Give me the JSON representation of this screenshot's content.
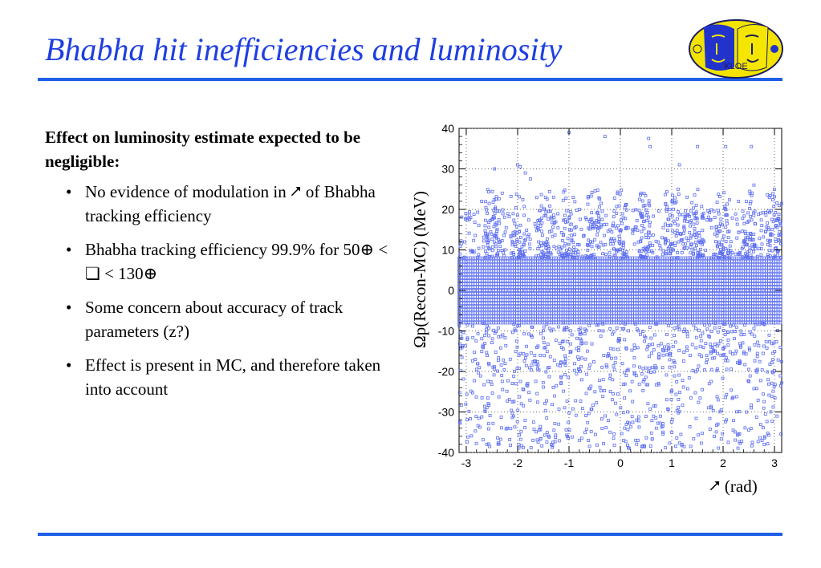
{
  "slide": {
    "title": "Bhabha hit inefficiencies and luminosity",
    "logo_text": "KLOE"
  },
  "body": {
    "lead": "Effect on luminosity estimate expected to be negligible:",
    "bullets": [
      "No evidence of modulation in ⭧ of Bhabha tracking efficiency",
      "Bhabha tracking efficiency 99.9% for 50⊕ < ❏ < 130⊕",
      "Some concern about accuracy of track parameters (z?)",
      "Effect is present in MC, and therefore taken into account"
    ]
  },
  "colors": {
    "title": "#1f3fe0",
    "rule": "#1f5fe8",
    "markers": "#5a6cf0"
  },
  "chart_data": {
    "type": "scatter",
    "xlabel": "⭧ (rad)",
    "ylabel": "Ωp(Recon-MC) (MeV)",
    "xlim": [
      -3.14,
      3.14
    ],
    "ylim": [
      -40,
      40
    ],
    "x_ticks": [
      "-3",
      "-2",
      "-1",
      "0",
      "1",
      "2",
      "3"
    ],
    "y_ticks": [
      "40",
      "30",
      "20",
      "10",
      "0",
      "-10",
      "-20",
      "-30",
      "-40"
    ],
    "grid": true,
    "marker": "open-square",
    "spike_x": [
      -2.5,
      -2.0,
      -1.5,
      -1.0,
      -0.5,
      0.0,
      0.5,
      1.0,
      1.5,
      2.0,
      2.5,
      3.0
    ],
    "band": {
      "y_min": -8,
      "y_max": 8
    },
    "tail_points": [
      [
        -2.45,
        30
      ],
      [
        -2.0,
        31
      ],
      [
        -1.95,
        30.5
      ],
      [
        -1.0,
        39
      ],
      [
        -0.3,
        38
      ],
      [
        0.55,
        37.5
      ],
      [
        0.58,
        35.5
      ],
      [
        1.5,
        35.5
      ],
      [
        2.05,
        35.5
      ],
      [
        2.55,
        35.5
      ],
      [
        -1.85,
        29
      ],
      [
        -1.75,
        27.5
      ],
      [
        1.15,
        31
      ],
      [
        2.6,
        26
      ],
      [
        -2.7,
        22
      ],
      [
        -2.3,
        24
      ],
      [
        -1.3,
        23
      ],
      [
        0.1,
        21
      ],
      [
        0.4,
        24
      ],
      [
        1.3,
        23
      ],
      [
        2.3,
        22
      ],
      [
        2.9,
        23
      ],
      [
        -2.6,
        -38
      ],
      [
        -1.7,
        -37
      ],
      [
        -0.6,
        -38.5
      ],
      [
        0.3,
        -37
      ],
      [
        1.2,
        -38
      ],
      [
        2.1,
        -37.5
      ],
      [
        2.8,
        -38
      ],
      [
        -2.2,
        -34
      ],
      [
        -1.2,
        -33
      ],
      [
        0.7,
        -34
      ],
      [
        1.9,
        -33
      ],
      [
        -0.2,
        -35
      ],
      [
        2.5,
        -34.5
      ]
    ]
  }
}
